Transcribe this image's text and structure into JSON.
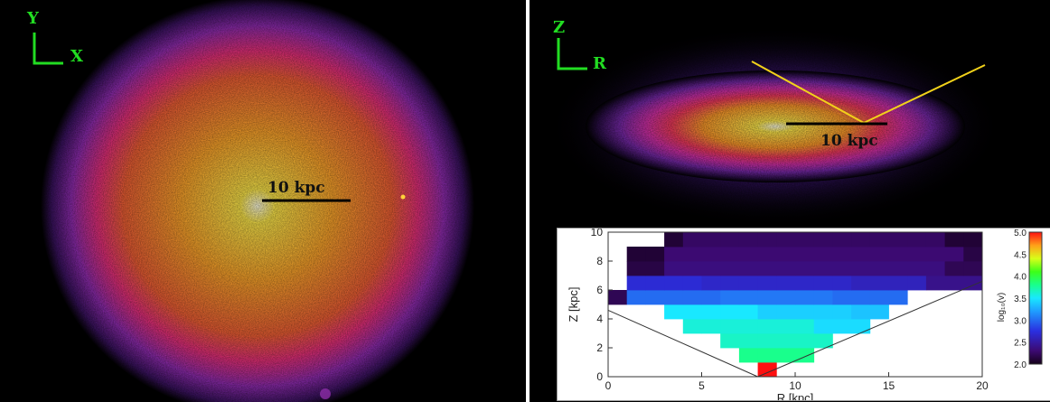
{
  "face_on": {
    "axis_y": "Y",
    "axis_x": "X",
    "scale_label": "10 kpc"
  },
  "edge_on": {
    "axis_z": "Z",
    "axis_r": "R",
    "scale_label": "10 kpc"
  },
  "colors": {
    "background": "#000000",
    "axis_glyph": "#22dd22",
    "wedge_lines": "#f2d21a",
    "scale_bar": "#000000"
  },
  "chart_data": {
    "type": "heatmap",
    "xlabel": "R [kpc]",
    "ylabel": "Z [kpc]",
    "colorbar_label": "log₁₀(v)",
    "xlim": [
      0,
      20
    ],
    "ylim": [
      0,
      10
    ],
    "x_ticks": [
      "0",
      "5",
      "10",
      "15",
      "20"
    ],
    "y_ticks": [
      "0",
      "2",
      "4",
      "6",
      "8",
      "10"
    ],
    "colorbar_ticks": [
      "2.0",
      "2.5",
      "3.0",
      "3.5",
      "4.0",
      "4.5",
      "5.0"
    ],
    "clim": [
      2.0,
      5.0
    ],
    "cell_size_kpc": 1,
    "rows": [
      {
        "z": 0,
        "cells": [
          [
            8,
            8,
            5.0
          ]
        ]
      },
      {
        "z": 1,
        "cells": [
          [
            7,
            10,
            3.8
          ]
        ]
      },
      {
        "z": 2,
        "cells": [
          [
            6,
            11,
            3.65
          ]
        ]
      },
      {
        "z": 3,
        "cells": [
          [
            4,
            11,
            3.6
          ],
          [
            11,
            13,
            3.45
          ]
        ]
      },
      {
        "z": 4,
        "cells": [
          [
            3,
            7,
            3.5
          ],
          [
            8,
            12,
            3.4
          ],
          [
            13,
            14,
            3.35
          ]
        ]
      },
      {
        "z": 5,
        "cells": [
          [
            0,
            0,
            2.2
          ],
          [
            1,
            5,
            3.0
          ],
          [
            6,
            11,
            3.05
          ],
          [
            12,
            15,
            3.0
          ]
        ]
      },
      {
        "z": 6,
        "cells": [
          [
            1,
            4,
            2.7
          ],
          [
            5,
            12,
            2.65
          ],
          [
            13,
            16,
            2.6
          ],
          [
            17,
            19,
            2.4
          ]
        ]
      },
      {
        "z": 7,
        "cells": [
          [
            1,
            2,
            2.15
          ],
          [
            3,
            17,
            2.35
          ],
          [
            18,
            19,
            2.2
          ]
        ]
      },
      {
        "z": 8,
        "cells": [
          [
            1,
            2,
            2.1
          ],
          [
            3,
            18,
            2.3
          ],
          [
            19,
            19,
            2.15
          ]
        ]
      },
      {
        "z": 9,
        "cells": [
          [
            3,
            3,
            2.1
          ],
          [
            4,
            17,
            2.25
          ],
          [
            18,
            19,
            2.1
          ]
        ]
      },
      {
        "z": 10,
        "cells": [
          [
            4,
            4,
            2.05
          ],
          [
            5,
            17,
            2.15
          ],
          [
            18,
            19,
            2.05
          ]
        ]
      }
    ],
    "boundary_lines": [
      {
        "from": [
          0,
          4.6
        ],
        "to": [
          8,
          0
        ]
      },
      {
        "from": [
          8,
          0
        ],
        "to": [
          20,
          6.6
        ]
      }
    ]
  }
}
